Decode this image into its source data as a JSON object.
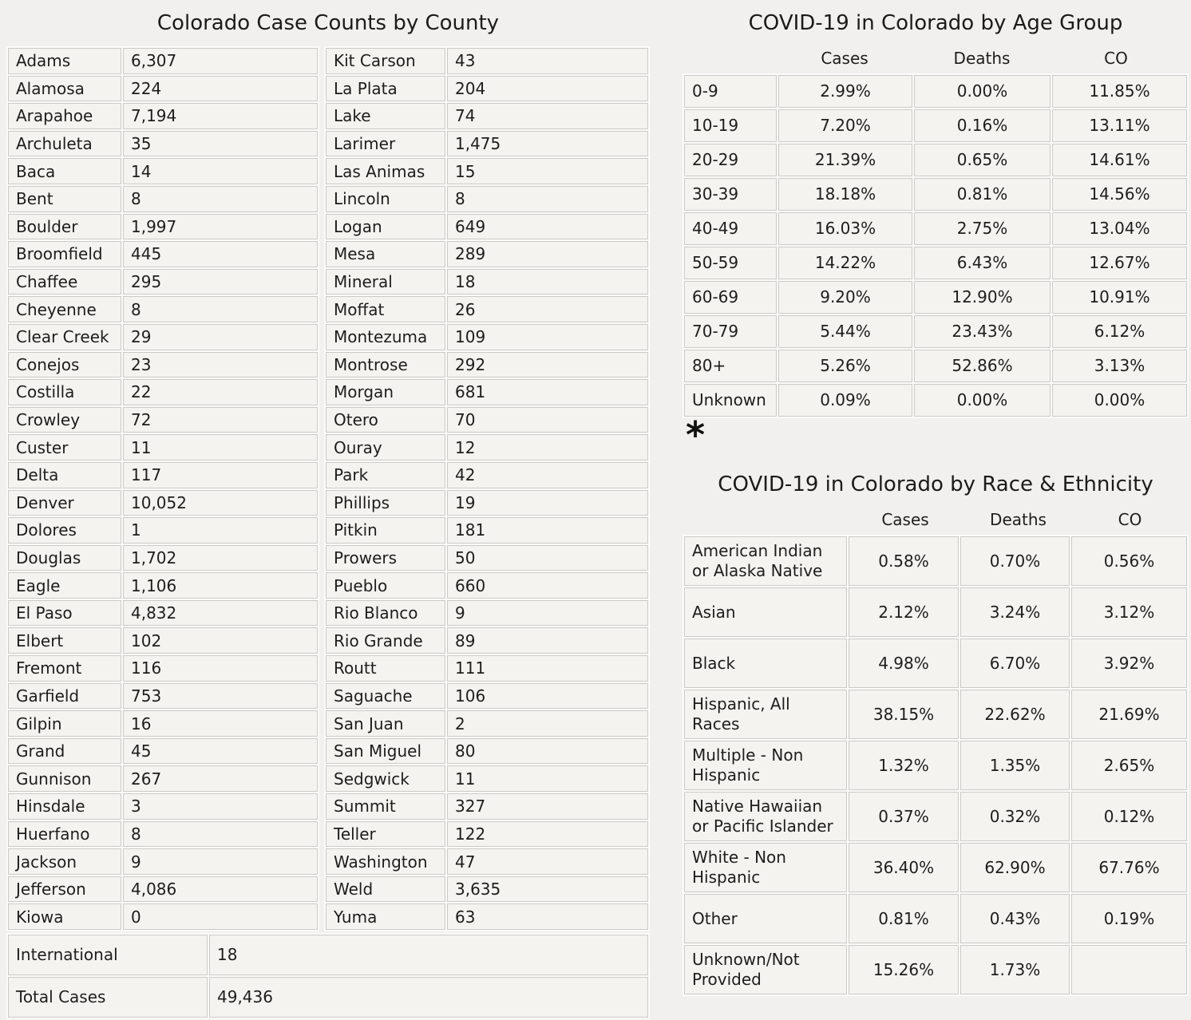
{
  "chart_data": [
    {
      "type": "table",
      "title": "Colorado Case Counts by County",
      "rows_left": [
        [
          "Adams",
          "6,307"
        ],
        [
          "Alamosa",
          "224"
        ],
        [
          "Arapahoe",
          "7,194"
        ],
        [
          "Archuleta",
          "35"
        ],
        [
          "Baca",
          "14"
        ],
        [
          "Bent",
          "8"
        ],
        [
          "Boulder",
          "1,997"
        ],
        [
          "Broomfield",
          "445"
        ],
        [
          "Chaffee",
          "295"
        ],
        [
          "Cheyenne",
          "8"
        ],
        [
          "Clear Creek",
          "29"
        ],
        [
          "Conejos",
          "23"
        ],
        [
          "Costilla",
          "22"
        ],
        [
          "Crowley",
          "72"
        ],
        [
          "Custer",
          "11"
        ],
        [
          "Delta",
          "117"
        ],
        [
          "Denver",
          "10,052"
        ],
        [
          "Dolores",
          "1"
        ],
        [
          "Douglas",
          "1,702"
        ],
        [
          "Eagle",
          "1,106"
        ],
        [
          "El Paso",
          "4,832"
        ],
        [
          "Elbert",
          "102"
        ],
        [
          "Fremont",
          "116"
        ],
        [
          "Garfield",
          "753"
        ],
        [
          "Gilpin",
          "16"
        ],
        [
          "Grand",
          "45"
        ],
        [
          "Gunnison",
          "267"
        ],
        [
          "Hinsdale",
          "3"
        ],
        [
          "Huerfano",
          "8"
        ],
        [
          "Jackson",
          "9"
        ],
        [
          "Jefferson",
          "4,086"
        ],
        [
          "Kiowa",
          "0"
        ]
      ],
      "rows_right": [
        [
          "Kit Carson",
          "43"
        ],
        [
          "La Plata",
          "204"
        ],
        [
          "Lake",
          "74"
        ],
        [
          "Larimer",
          "1,475"
        ],
        [
          "Las Animas",
          "15"
        ],
        [
          "Lincoln",
          "8"
        ],
        [
          "Logan",
          "649"
        ],
        [
          "Mesa",
          "289"
        ],
        [
          "Mineral",
          "18"
        ],
        [
          "Moffat",
          "26"
        ],
        [
          "Montezuma",
          "109"
        ],
        [
          "Montrose",
          "292"
        ],
        [
          "Morgan",
          "681"
        ],
        [
          "Otero",
          "70"
        ],
        [
          "Ouray",
          "12"
        ],
        [
          "Park",
          "42"
        ],
        [
          "Phillips",
          "19"
        ],
        [
          "Pitkin",
          "181"
        ],
        [
          "Prowers",
          "50"
        ],
        [
          "Pueblo",
          "660"
        ],
        [
          "Rio Blanco",
          "9"
        ],
        [
          "Rio Grande",
          "89"
        ],
        [
          "Routt",
          "111"
        ],
        [
          "Saguache",
          "106"
        ],
        [
          "San Juan",
          "2"
        ],
        [
          "San Miguel",
          "80"
        ],
        [
          "Sedgwick",
          "11"
        ],
        [
          "Summit",
          "327"
        ],
        [
          "Teller",
          "122"
        ],
        [
          "Washington",
          "47"
        ],
        [
          "Weld",
          "3,635"
        ],
        [
          "Yuma",
          "63"
        ]
      ],
      "footer": [
        [
          "International",
          "18"
        ],
        [
          "Total Cases",
          "49,436"
        ]
      ]
    },
    {
      "type": "table",
      "title": "COVID-19 in Colorado by Age Group",
      "columns": [
        "Cases",
        "Deaths",
        "CO"
      ],
      "rows": [
        [
          "0-9",
          "2.99%",
          "0.00%",
          "11.85%"
        ],
        [
          "10-19",
          "7.20%",
          "0.16%",
          "13.11%"
        ],
        [
          "20-29",
          "21.39%",
          "0.65%",
          "14.61%"
        ],
        [
          "30-39",
          "18.18%",
          "0.81%",
          "14.56%"
        ],
        [
          "40-49",
          "16.03%",
          "2.75%",
          "13.04%"
        ],
        [
          "50-59",
          "14.22%",
          "6.43%",
          "12.67%"
        ],
        [
          "60-69",
          "9.20%",
          "12.90%",
          "10.91%"
        ],
        [
          "70-79",
          "5.44%",
          "23.43%",
          "6.12%"
        ],
        [
          "80+",
          "5.26%",
          "52.86%",
          "3.13%"
        ],
        [
          "Unknown",
          "0.09%",
          "0.00%",
          "0.00%"
        ]
      ],
      "footnote": "*"
    },
    {
      "type": "table",
      "title": "COVID-19 in Colorado by Race & Ethnicity",
      "columns": [
        "Cases",
        "Deaths",
        "CO"
      ],
      "rows": [
        [
          "American Indian or Alaska Native",
          "0.58%",
          "0.70%",
          "0.56%"
        ],
        [
          "Asian",
          "2.12%",
          "3.24%",
          "3.12%"
        ],
        [
          "Black",
          "4.98%",
          "6.70%",
          "3.92%"
        ],
        [
          "Hispanic, All Races",
          "38.15%",
          "22.62%",
          "21.69%"
        ],
        [
          "Multiple - Non Hispanic",
          "1.32%",
          "1.35%",
          "2.65%"
        ],
        [
          "Native Hawaiian or Pacific Islander",
          "0.37%",
          "0.32%",
          "0.12%"
        ],
        [
          "White - Non Hispanic",
          "36.40%",
          "62.90%",
          "67.76%"
        ],
        [
          "Other",
          "0.81%",
          "0.43%",
          "0.19%"
        ],
        [
          "Unknown/Not Provided",
          "15.26%",
          "1.73%",
          ""
        ]
      ]
    }
  ],
  "colors": {
    "page_background": "#f1f0ee",
    "cell_background": "#f4f3f0",
    "cell_border": "#cbcac7",
    "text": "#1d1d1b"
  }
}
